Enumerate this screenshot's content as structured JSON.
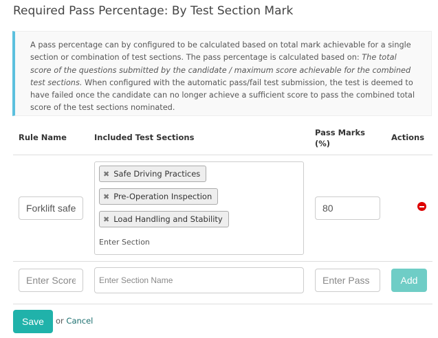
{
  "title": "Required Pass Percentage: By Test Section Mark",
  "info": {
    "text1": "A pass percentage can by configured to be calculated based on total mark achievable for a single section or combination of test sections. The pass percentage is calculated based on: ",
    "italic": "The total score of the questions submitted by the candidate / maximum score achievable for the combined test sections.",
    "text2": " When configured with the automatic pass/fail test submission, the test is deemed to have failed once the candidate can no longer achieve a sufficient score to pass the combined total score of the test sections nominated."
  },
  "table": {
    "headers": {
      "rule_name": "Rule Name",
      "sections": "Included Test Sections",
      "pass_marks": "Pass Marks (%)",
      "actions": "Actions"
    },
    "rows": [
      {
        "rule_name": "Forklift safety",
        "sections": [
          "Safe Driving Practices",
          "Pre-Operation Inspection",
          "Load Handling and Stability"
        ],
        "section_placeholder": "Enter Section",
        "pass_marks": "80",
        "delete_icon": "minus-circle-icon"
      }
    ],
    "new_row": {
      "rule_placeholder": "Enter Score",
      "section_placeholder": "Enter Section Name",
      "pass_placeholder": "Enter Pass Marks",
      "add_label": "Add"
    }
  },
  "footer": {
    "save_label": "Save",
    "or_text": "or",
    "cancel_label": "Cancel"
  },
  "colors": {
    "accent": "#20b2aa",
    "info_border": "#5bc0de",
    "delete": "#dd0000"
  }
}
